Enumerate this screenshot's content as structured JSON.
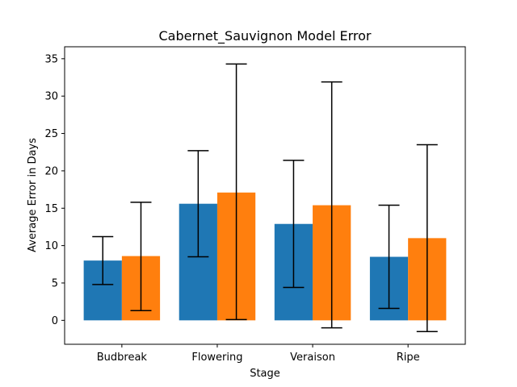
{
  "chart_data": {
    "type": "bar",
    "title": "Cabernet_Sauvignon Model Error",
    "xlabel": "Stage",
    "ylabel": "Average Error in Days",
    "categories": [
      "Budbreak",
      "Flowering",
      "Veraison",
      "Ripe"
    ],
    "ylim": [
      -3.2,
      36.6
    ],
    "yticks": [
      0,
      5,
      10,
      15,
      20,
      25,
      30,
      35
    ],
    "grid": false,
    "series": [
      {
        "color": "#1f77b4",
        "values": [
          8.0,
          15.6,
          12.9,
          8.5
        ],
        "error_low": [
          4.8,
          8.5,
          4.4,
          1.6
        ],
        "error_high": [
          11.2,
          22.7,
          21.4,
          15.4
        ]
      },
      {
        "color": "#ff7f0e",
        "values": [
          8.6,
          17.1,
          15.4,
          11.0
        ],
        "error_low": [
          1.3,
          0.1,
          -1.0,
          -1.5
        ],
        "error_high": [
          15.8,
          34.3,
          31.9,
          23.5
        ]
      }
    ]
  }
}
